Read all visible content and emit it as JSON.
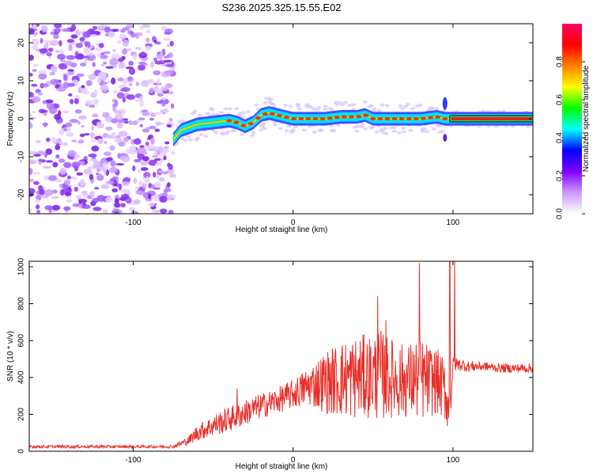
{
  "title": "S236.2025.325.15.55.E02",
  "chart_data": [
    {
      "type": "heatmap",
      "xlabel": "Height of straight line (km)",
      "ylabel": "Frequency (Hz)",
      "xlim": [
        -165,
        150
      ],
      "ylim": [
        -25,
        25
      ],
      "x_ticks": [
        -100,
        0,
        100
      ],
      "y_ticks": [
        -20,
        -10,
        0,
        10,
        20
      ],
      "colorbar": {
        "label": "Normalized spectral amplitude",
        "range": [
          0,
          1
        ],
        "ticks": [
          "0.0",
          "0.2",
          "0.4",
          "0.6",
          "0.8"
        ],
        "colors": [
          "#ffffff",
          "#cc99ff",
          "#8000ff",
          "#0000ff",
          "#00ffff",
          "#00ff00",
          "#ffff00",
          "#ff8000",
          "#ff0000",
          "#ff0066"
        ]
      },
      "noise_region": {
        "x_range": [
          -165,
          -75
        ],
        "y_range": [
          -25,
          25
        ]
      },
      "ridge": {
        "x": [
          -75,
          -70,
          -60,
          -50,
          -40,
          -35,
          -30,
          -25,
          -20,
          -15,
          -10,
          -5,
          0,
          10,
          20,
          30,
          40,
          45,
          50,
          55,
          60,
          70,
          80,
          90,
          95,
          100,
          110,
          120,
          130,
          140,
          150
        ],
        "y": [
          -5.5,
          -3,
          -1.5,
          -1,
          -0.5,
          -1,
          -2,
          -1,
          1,
          1.5,
          1,
          0.5,
          0,
          0,
          0,
          0.5,
          0.5,
          1,
          0,
          0,
          0,
          0,
          0,
          0.5,
          0,
          0,
          0,
          0,
          0,
          0,
          0
        ]
      }
    },
    {
      "type": "line",
      "xlabel": "Height of straight line (km)",
      "ylabel": "SNR (10 * v/v)",
      "xlim": [
        -165,
        150
      ],
      "ylim": [
        0,
        1030
      ],
      "x_ticks": [
        -100,
        0,
        100
      ],
      "y_ticks": [
        0,
        200,
        400,
        600,
        800,
        1000
      ],
      "color": "#e8302a",
      "envelope": {
        "x": [
          -165,
          -75,
          -65,
          -60,
          -50,
          -40,
          -30,
          -20,
          -10,
          0,
          10,
          20,
          30,
          40,
          50,
          55,
          60,
          70,
          75,
          80,
          85,
          90,
          95,
          98,
          100,
          105,
          110,
          120,
          130,
          140,
          150
        ],
        "mean": [
          25,
          25,
          60,
          100,
          140,
          175,
          210,
          245,
          275,
          310,
          355,
          375,
          390,
          400,
          410,
          410,
          400,
          380,
          390,
          390,
          380,
          380,
          330,
          200,
          470,
          470,
          460,
          460,
          450,
          450,
          450
        ],
        "amplitude": [
          8,
          8,
          25,
          45,
          60,
          70,
          70,
          70,
          70,
          80,
          110,
          170,
          210,
          230,
          230,
          250,
          220,
          200,
          210,
          230,
          200,
          180,
          170,
          120,
          40,
          35,
          30,
          25,
          25,
          25,
          25
        ]
      },
      "spikes": [
        {
          "x": -35,
          "y": 340
        },
        {
          "x": 53,
          "y": 840
        },
        {
          "x": 58,
          "y": 710
        },
        {
          "x": 79,
          "y": 1020
        },
        {
          "x": 98,
          "y": 1030
        },
        {
          "x": 101,
          "y": 1030
        }
      ]
    }
  ]
}
